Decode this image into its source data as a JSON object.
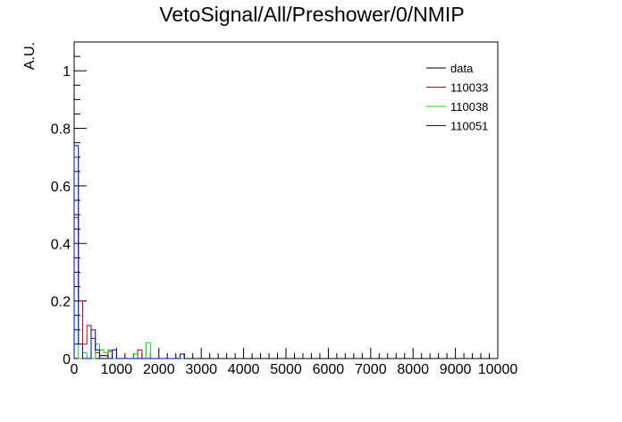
{
  "chart_data": {
    "type": "histogram-step",
    "title": "VetoSignal/All/Preshower/0/NMIP",
    "xlabel": "",
    "ylabel": "A.U.",
    "xlim": [
      0,
      10000
    ],
    "ylim": [
      0,
      1.1
    ],
    "bin_width": 100,
    "x_ticks": [
      0,
      1000,
      2000,
      3000,
      4000,
      5000,
      6000,
      7000,
      8000,
      9000,
      10000
    ],
    "x_tick_labels": [
      "0",
      "1000",
      "2000",
      "3000",
      "4000",
      "5000",
      "6000",
      "7000",
      "8000",
      "9000",
      "10000"
    ],
    "y_ticks": [
      0,
      0.2,
      0.4,
      0.6,
      0.8,
      1
    ],
    "y_tick_labels": [
      "0",
      "0.2",
      "0.4",
      "0.6",
      "0.8",
      "1"
    ],
    "legend_position": "top-right",
    "series": [
      {
        "name": "data",
        "color": "#000000",
        "values": []
      },
      {
        "name": "110033",
        "color": "#cc0000",
        "values": [
          0.49,
          0.2,
          0.05,
          0.115,
          0.07,
          0.02,
          0.01,
          0.01,
          0.025,
          0.0,
          0.0,
          0.0,
          0.0,
          0.0,
          0.0,
          0.03,
          0.0,
          0.0,
          0.0,
          0.0,
          0.0,
          0.0,
          0.0,
          0.0,
          0.0,
          0.0
        ]
      },
      {
        "name": "110038",
        "color": "#00dd00",
        "values": [
          0.7,
          0.0,
          0.02,
          0.0,
          0.0,
          0.05,
          0.03,
          0.02,
          0.03,
          0.0,
          0.0,
          0.0,
          0.0,
          0.0,
          0.015,
          0.0,
          0.0,
          0.055,
          0.0,
          0.0,
          0.0,
          0.0,
          0.0,
          0.0,
          0.0,
          0.0
        ]
      },
      {
        "name": "110051",
        "color": "#0000cc",
        "values": [
          0.74,
          0.05,
          0.0,
          0.0,
          0.1,
          0.03,
          0.01,
          0.01,
          0.0,
          0.03,
          0.0,
          0.0,
          0.0,
          0.0,
          0.0,
          0.0,
          0.0,
          0.0,
          0.0,
          0.0,
          0.0,
          0.0,
          0.0,
          0.0,
          0.0,
          0.015
        ]
      }
    ]
  }
}
